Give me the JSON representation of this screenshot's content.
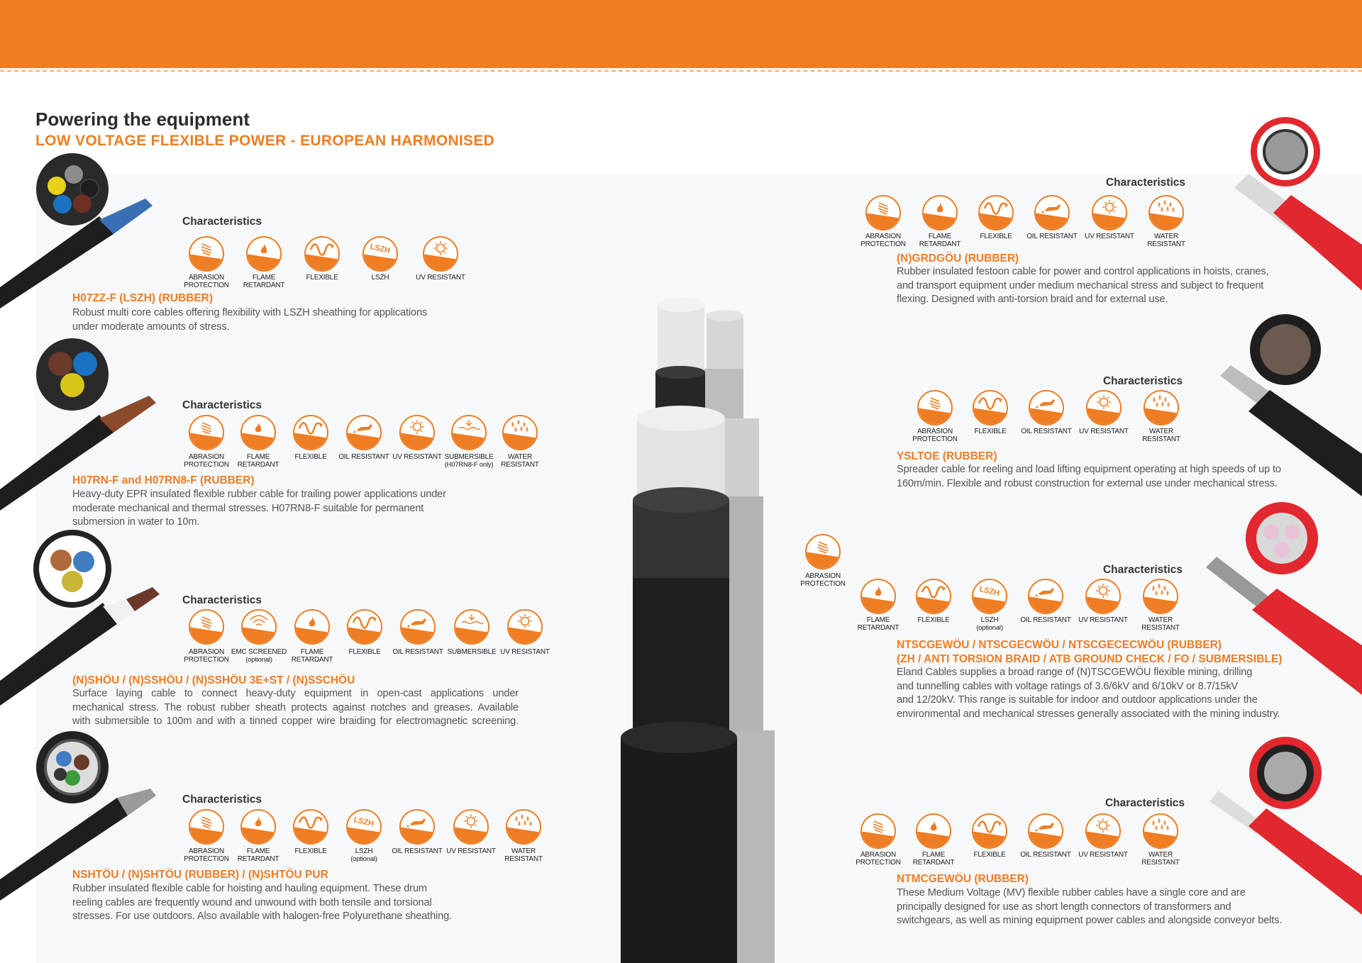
{
  "header": {
    "title": "Powering the equipment",
    "subtitle": "LOW VOLTAGE FLEXIBLE POWER - EUROPEAN HARMONISED"
  },
  "colors": {
    "accent": "#ee7d23",
    "text": "#555555",
    "heading": "#2b2b2b",
    "panel": "#f7f8fa",
    "cable_red": "#e0282e"
  },
  "characteristics_label": "Characteristics",
  "icon_glyphs": {
    "lszh": "LSZH"
  },
  "products": [
    {
      "title": "H07ZZ-F (LSZH) (RUBBER)",
      "description": [
        "Robust multi core cables offering flexibility with LSZH sheathing for applications",
        "under moderate amounts of stress."
      ],
      "characteristics": [
        {
          "icon": "abrasion",
          "label": "ABRASION PROTECTION"
        },
        {
          "icon": "flame",
          "label": "FLAME RETARDANT"
        },
        {
          "icon": "flexible",
          "label": "FLEXIBLE"
        },
        {
          "icon": "lszh",
          "label": "LSZH"
        },
        {
          "icon": "uv",
          "label": "UV RESISTANT"
        }
      ]
    },
    {
      "title": "H07RN-F and H07RN8-F (RUBBER)",
      "description": [
        "Heavy-duty EPR insulated flexible rubber cable for trailing power applications under",
        "moderate mechanical and thermal stresses. H07RN8-F suitable for permanent",
        "submersion in water to 10m."
      ],
      "characteristics": [
        {
          "icon": "abrasion",
          "label": "ABRASION PROTECTION"
        },
        {
          "icon": "flame",
          "label": "FLAME RETARDANT"
        },
        {
          "icon": "flexible",
          "label": "FLEXIBLE"
        },
        {
          "icon": "oil",
          "label": "OIL RESISTANT"
        },
        {
          "icon": "uv",
          "label": "UV RESISTANT"
        },
        {
          "icon": "submersible",
          "label": "SUBMERSIBLE",
          "note": "(H07RN8-F only)"
        },
        {
          "icon": "water",
          "label": "WATER RESISTANT"
        }
      ]
    },
    {
      "title": "(N)SHÖU / (N)SSHÖU / (N)SSHÖU 3E+ST / (N)SSCHÖU",
      "description": [
        "Surface laying cable to connect heavy-duty equipment in open-cast applications under",
        "mechanical stress. The robust rubber sheath protects against notches and greases. Available",
        "with submersible to 100m and with a tinned copper wire braiding for electromagnetic screening."
      ],
      "characteristics": [
        {
          "icon": "abrasion",
          "label": "ABRASION PROTECTION"
        },
        {
          "icon": "emc",
          "label": "EMC SCREENED",
          "note": "(optional)"
        },
        {
          "icon": "flame",
          "label": "FLAME RETARDANT"
        },
        {
          "icon": "flexible",
          "label": "FLEXIBLE"
        },
        {
          "icon": "oil",
          "label": "OIL RESISTANT"
        },
        {
          "icon": "submersible",
          "label": "SUBMERSIBLE"
        },
        {
          "icon": "uv",
          "label": "UV RESISTANT"
        }
      ]
    },
    {
      "title": "NSHTÖU / (N)SHTÖU (RUBBER) / (N)SHTÖU PUR",
      "description": [
        "Rubber insulated flexible cable for hoisting and hauling equipment. These drum",
        "reeling cables are frequently wound and unwound with both tensile and torsional",
        "stresses. For use outdoors. Also available with halogen-free Polyurethane sheathing."
      ],
      "characteristics": [
        {
          "icon": "abrasion",
          "label": "ABRASION PROTECTION"
        },
        {
          "icon": "flame",
          "label": "FLAME RETARDANT"
        },
        {
          "icon": "flexible",
          "label": "FLEXIBLE"
        },
        {
          "icon": "lszh",
          "label": "LSZH",
          "note": "(optional)"
        },
        {
          "icon": "oil",
          "label": "OIL RESISTANT"
        },
        {
          "icon": "uv",
          "label": "UV RESISTANT"
        },
        {
          "icon": "water",
          "label": "WATER RESISTANT"
        }
      ]
    },
    {
      "title": "(N)GRDGÖU (RUBBER)",
      "description": [
        "Rubber insulated festoon cable for power and control applications in hoists, cranes,",
        "and transport equipment under medium mechanical stress and subject to frequent",
        "flexing. Designed with anti-torsion braid and for external use."
      ],
      "characteristics": [
        {
          "icon": "abrasion",
          "label": "ABRASION PROTECTION"
        },
        {
          "icon": "flame",
          "label": "FLAME RETARDANT"
        },
        {
          "icon": "flexible",
          "label": "FLEXIBLE"
        },
        {
          "icon": "oil",
          "label": "OIL RESISTANT"
        },
        {
          "icon": "uv",
          "label": "UV RESISTANT"
        },
        {
          "icon": "water",
          "label": "WATER RESISTANT"
        }
      ]
    },
    {
      "title": "YSLTOE (RUBBER)",
      "description": [
        "Spreader cable for reeling and load lifting equipment operating at high speeds of up to",
        "160m/min. Flexible and robust construction for external use under mechanical stress."
      ],
      "characteristics": [
        {
          "icon": "abrasion",
          "label": "ABRASION PROTECTION"
        },
        {
          "icon": "flexible",
          "label": "FLEXIBLE"
        },
        {
          "icon": "oil",
          "label": "OIL RESISTANT"
        },
        {
          "icon": "uv",
          "label": "UV RESISTANT"
        },
        {
          "icon": "water",
          "label": "WATER RESISTANT"
        }
      ]
    },
    {
      "title": "NTSCGEWÖU / NTSCGECWÖU / NTSCGECECWÖU (RUBBER)",
      "title2": "(ZH / ANTI TORSION BRAID / ATB GROUND CHECK / FO / SUBMERSIBLE)",
      "description": [
        "Eland Cables supplies a broad range of (N)TSCGEWÖU flexible mining, drilling",
        "and tunnelling cables with voltage ratings of 3.6/6kV and 6/10kV or 8.7/15kV",
        "and 12/20kV. This range is suitable for indoor and outdoor applications under the",
        "environmental and mechanical stresses generally associated with the mining industry."
      ],
      "characteristics": [
        {
          "icon": "abrasion",
          "label": "ABRASION PROTECTION"
        },
        {
          "icon": "flame",
          "label": "FLAME RETARDANT"
        },
        {
          "icon": "flexible",
          "label": "FLEXIBLE"
        },
        {
          "icon": "lszh",
          "label": "LSZH",
          "note": "(optional)"
        },
        {
          "icon": "oil",
          "label": "OIL RESISTANT"
        },
        {
          "icon": "uv",
          "label": "UV RESISTANT"
        },
        {
          "icon": "water",
          "label": "WATER RESISTANT"
        }
      ]
    },
    {
      "title": "NTMCGEWÖU (RUBBER)",
      "description": [
        "These Medium Voltage (MV) flexible rubber cables have a single core and are",
        "principally designed for use as short length connectors of transformers and",
        "switchgears, as well as mining equipment power cables and alongside conveyor belts."
      ],
      "characteristics": [
        {
          "icon": "abrasion",
          "label": "ABRASION PROTECTION"
        },
        {
          "icon": "flame",
          "label": "FLAME RETARDANT"
        },
        {
          "icon": "flexible",
          "label": "FLEXIBLE"
        },
        {
          "icon": "oil",
          "label": "OIL RESISTANT"
        },
        {
          "icon": "uv",
          "label": "UV RESISTANT"
        },
        {
          "icon": "water",
          "label": "WATER RESISTANT"
        }
      ]
    }
  ]
}
